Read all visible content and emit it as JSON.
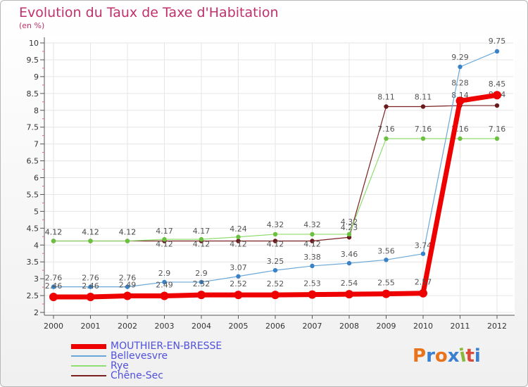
{
  "header": {
    "title": "Evolution du Taux de Taxe d'Habitation",
    "unit": "(en %)"
  },
  "logo": {
    "text": "Proxiti",
    "colors": [
      "#e8731a",
      "#3a7fd0",
      "#e8731a",
      "#3a7fd0",
      "#8ab83a",
      "#d94a3a",
      "#3a7fd0"
    ]
  },
  "chart_data": {
    "type": "line",
    "title": "Evolution du Taux de Taxe d'Habitation",
    "ylabel": "(en %)",
    "xlabel": "",
    "ylim": [
      2,
      10
    ],
    "yticks": [
      "2",
      "2.5",
      "3",
      "3.5",
      "4",
      "4.5",
      "5",
      "5.5",
      "6",
      "6.5",
      "7",
      "7.5",
      "8",
      "8.5",
      "9",
      "9.5",
      "10"
    ],
    "categories": [
      "2000",
      "2001",
      "2002",
      "2003",
      "2004",
      "2005",
      "2006",
      "2007",
      "2008",
      "2009",
      "2010",
      "2011",
      "2012"
    ],
    "series": [
      {
        "name": "Chêne-Sec",
        "color": "#7a2020",
        "marker": "#6a1a1a",
        "width": 1.2,
        "r": 3.2,
        "values": [
          4.12,
          4.12,
          4.12,
          4.12,
          4.12,
          4.12,
          4.12,
          4.12,
          4.23,
          8.11,
          8.11,
          8.14,
          8.14
        ],
        "labels": [
          "4.12",
          "4.12",
          "4.12",
          "4.12",
          "4.12",
          "4.12",
          "4.12",
          "4.12",
          "4.23",
          "8.11",
          "8.11",
          "8.14",
          "8.14"
        ],
        "label_dy": [
          -9,
          -9,
          -9,
          8,
          8,
          8,
          8,
          8,
          -10,
          -10,
          -10,
          -11,
          -12
        ]
      },
      {
        "name": "Rye",
        "color": "#90dd70",
        "marker": "#6cc040",
        "width": 1.2,
        "r": 3.2,
        "values": [
          4.12,
          4.12,
          4.12,
          4.17,
          4.17,
          4.24,
          4.32,
          4.32,
          4.32,
          7.16,
          7.16,
          7.16,
          7.16
        ],
        "labels": [
          "4.12",
          "4.12",
          "4.12",
          "4.17",
          "4.17",
          "4.24",
          "4.32",
          "4.32",
          "4.32",
          "7.16",
          "7.16",
          "7.16",
          "7.16"
        ],
        "label_dy": [
          -9,
          -9,
          -9,
          -8,
          -8,
          -8,
          -10,
          -10,
          -14,
          -10,
          -10,
          -10,
          -10
        ]
      },
      {
        "name": "Bellevesvre",
        "color": "#6aa8d8",
        "marker": "#3a82c8",
        "width": 1.2,
        "r": 3.2,
        "values": [
          2.76,
          2.76,
          2.76,
          2.9,
          2.9,
          3.07,
          3.25,
          3.38,
          3.46,
          3.56,
          3.74,
          9.29,
          9.75
        ],
        "labels": [
          "2.76",
          "2.76",
          "2.76",
          "2.9",
          "2.9",
          "3.07",
          "3.25",
          "3.38",
          "3.46",
          "3.56",
          "3.74",
          "9.29",
          "9.75"
        ],
        "label_dy": [
          -9,
          -9,
          -9,
          -9,
          -9,
          -9,
          -9,
          -9,
          -9,
          -9,
          -8,
          -10,
          -11
        ]
      },
      {
        "name": "MOUTHIER-EN-BRESSE",
        "color": "#ee0000",
        "marker": "#ee0000",
        "width": 7,
        "r": 6,
        "values": [
          2.46,
          2.46,
          2.49,
          2.49,
          2.52,
          2.52,
          2.52,
          2.53,
          2.54,
          2.55,
          2.57,
          8.28,
          8.45
        ],
        "labels": [
          "2.46",
          "2.46",
          "2.49",
          "2.49",
          "2.52",
          "2.52",
          "2.52",
          "2.53",
          "2.54",
          "2.55",
          "2.57",
          "8.28",
          "8.45"
        ],
        "label_dy": [
          -12,
          -12,
          -12,
          -12,
          -12,
          -12,
          -12,
          -12,
          -12,
          -12,
          -12,
          -22,
          -12
        ]
      }
    ],
    "legend": [
      {
        "name": "MOUTHIER-EN-BRESSE",
        "color": "#ee0000",
        "thick": 7
      },
      {
        "name": "Bellevesvre",
        "color": "#6aa8d8",
        "thick": 2
      },
      {
        "name": "Rye",
        "color": "#90dd70",
        "thick": 2
      },
      {
        "name": "Chêne-Sec",
        "color": "#7a2020",
        "thick": 2
      }
    ],
    "legend_position": "bottom-left"
  }
}
